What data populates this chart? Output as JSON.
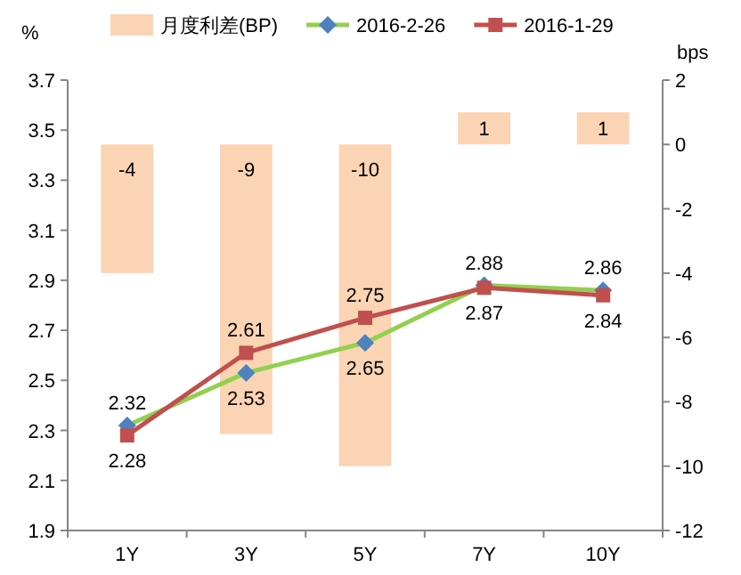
{
  "chart_data": {
    "type": "line",
    "ylabel": "%",
    "y2label": "bps",
    "categories": [
      "1Y",
      "3Y",
      "5Y",
      "7Y",
      "10Y"
    ],
    "series": [
      {
        "name": "月度利差(BP)",
        "type": "bar",
        "axis": "y2",
        "color": "#fbd4b4",
        "values": [
          -4,
          -9,
          -10,
          1,
          1
        ]
      },
      {
        "name": "2016-2-26",
        "color": "#92d050",
        "colors": [
          "#4f81bd",
          "#4f81bd",
          "#4f81bd",
          "#4f81bd",
          "#4f81bd"
        ],
        "marker": "diamond",
        "values": [
          2.32,
          2.53,
          2.65,
          2.88,
          2.86
        ]
      },
      {
        "name": "2016-1-29",
        "color": "#c0504d",
        "marker": "square",
        "values": [
          2.28,
          2.61,
          2.75,
          2.87,
          2.84
        ]
      }
    ],
    "ylim": [
      1.9,
      3.7
    ],
    "yticks": [
      1.9,
      2.1,
      2.3,
      2.5,
      2.7,
      2.9,
      3.1,
      3.3,
      3.5,
      3.7
    ],
    "y2lim": [
      -12,
      2
    ],
    "y2ticks": [
      -12,
      -10,
      -8,
      -6,
      -4,
      -2,
      0,
      2
    ],
    "data_labels": true,
    "legend": "top",
    "grid": false
  }
}
